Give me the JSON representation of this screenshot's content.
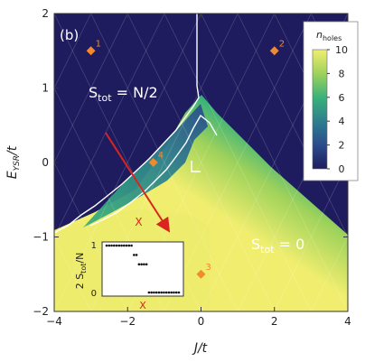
{
  "chart_data": {
    "type": "heatmap",
    "panel_label": "(b)",
    "xlabel": "J/t",
    "ylabel": "E_YSR/t",
    "xlim": [
      -4,
      4
    ],
    "ylim": [
      -2,
      2
    ],
    "x_ticks": [
      -4,
      -2,
      0,
      2,
      4
    ],
    "y_ticks": [
      -2,
      -1,
      0,
      1,
      2
    ],
    "x_tick_labels": [
      "−4",
      "−2",
      "0",
      "2",
      "4"
    ],
    "y_tick_labels": [
      "−2",
      "−1",
      "0",
      "1",
      "2"
    ],
    "colorbar": {
      "title": "n",
      "title_sub": "holes",
      "range": [
        0,
        10
      ],
      "ticks": [
        0,
        2,
        4,
        6,
        8,
        10
      ],
      "colors": [
        "#1e1b5e",
        "#2b4c8c",
        "#2d7f8e",
        "#3ab27a",
        "#9fd25b",
        "#f1ee6f"
      ],
      "placement": "top-right"
    },
    "regions": [
      {
        "label_main": "S",
        "label_sub": "tot",
        "label_rest": " = N/2",
        "value": 0
      },
      {
        "label_main": "S",
        "label_sub": "tot",
        "label_rest": " = 0",
        "value": 10
      }
    ],
    "points": [
      {
        "label": "1",
        "x": -3.0,
        "y": 1.5
      },
      {
        "label": "2",
        "x": 2.0,
        "y": 1.5
      },
      {
        "label": "3",
        "x": 0.0,
        "y": -1.5
      },
      {
        "label": "4",
        "x": -1.3,
        "y": 0.0
      }
    ],
    "arrow": {
      "from": [
        -2.6,
        0.4
      ],
      "to": [
        -0.9,
        -0.9
      ],
      "marker_label": "X",
      "marker_at": [
        -1.7,
        -0.8
      ]
    },
    "inset": {
      "ylabel": "2 S_tot/N",
      "y_ticks": [
        "0",
        "1"
      ],
      "marker_label": "X",
      "values": [
        1,
        1,
        1,
        1,
        1,
        1,
        1,
        1,
        1,
        1,
        1,
        0.8,
        0.8,
        0.6,
        0.6,
        0.6,
        0.6,
        0,
        0,
        0,
        0,
        0,
        0,
        0,
        0,
        0,
        0,
        0,
        0,
        0
      ]
    }
  }
}
